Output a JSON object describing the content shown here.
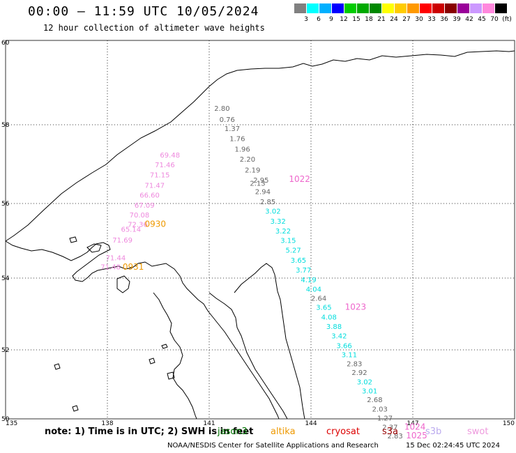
{
  "header": {
    "title": "00:00 – 11:59 UTC 10/05/2024",
    "subtitle": "12 hour collection of altimeter wave heights"
  },
  "legend": {
    "colors": [
      "#808080",
      "#00ffff",
      "#00b0ff",
      "#0000ff",
      "#00cc00",
      "#00aa00",
      "#008800",
      "#ffff00",
      "#ffcc00",
      "#ff9900",
      "#ff0000",
      "#cc0000",
      "#880000",
      "#990099",
      "#cc99ff",
      "#ff88dd",
      "#000000"
    ],
    "labels": [
      "3",
      "6",
      "9",
      "12",
      "15",
      "18",
      "21",
      "24",
      "27",
      "30",
      "33",
      "36",
      "39",
      "42",
      "45",
      "70",
      "(ft)"
    ]
  },
  "axes": {
    "lon_labels": [
      "135",
      "138",
      "141",
      "144",
      "147",
      "150"
    ],
    "lat_labels": [
      "50",
      "52",
      "54",
      "56",
      "58",
      "60"
    ]
  },
  "tracks": [
    {
      "color": "#666666",
      "values": [
        {
          "t": "2.80",
          "lat": 58.33,
          "lon": 141.15
        },
        {
          "t": "0.76",
          "lat": 58.07,
          "lon": 141.3
        },
        {
          "t": "1.37",
          "lat": 57.84,
          "lon": 141.45
        },
        {
          "t": "1.76",
          "lat": 57.58,
          "lon": 141.6
        },
        {
          "t": "1.96",
          "lat": 57.32,
          "lon": 141.75
        },
        {
          "t": "2.20",
          "lat": 57.06,
          "lon": 141.9
        },
        {
          "t": "2.19",
          "lat": 56.79,
          "lon": 142.05
        },
        {
          "t": "2.95",
          "lat": 56.53,
          "lon": 142.3
        },
        {
          "t": "2.13",
          "lat": 56.45,
          "lon": 142.2
        },
        {
          "t": "2.94",
          "lat": 56.24,
          "lon": 142.35
        },
        {
          "t": "2.85",
          "lat": 55.98,
          "lon": 142.5
        }
      ]
    },
    {
      "color": "#00dddd",
      "values": [
        {
          "t": "3.02",
          "lat": 55.73,
          "lon": 142.65
        },
        {
          "t": "3.32",
          "lat": 55.46,
          "lon": 142.8
        },
        {
          "t": "3.22",
          "lat": 55.2,
          "lon": 142.95
        },
        {
          "t": "3.15",
          "lat": 54.94,
          "lon": 143.1
        },
        {
          "t": "5.27",
          "lat": 54.68,
          "lon": 143.25
        },
        {
          "t": "3.65",
          "lat": 54.41,
          "lon": 143.4
        },
        {
          "t": "3.77",
          "lat": 54.15,
          "lon": 143.55
        },
        {
          "t": "4.19",
          "lat": 53.88,
          "lon": 143.7
        },
        {
          "t": "4.04",
          "lat": 53.62,
          "lon": 143.85
        }
      ]
    },
    {
      "color": "#666666",
      "values": [
        {
          "t": "2.64",
          "lat": 53.37,
          "lon": 144.0
        }
      ]
    },
    {
      "color": "#00dddd",
      "values": [
        {
          "t": "3.65",
          "lat": 53.12,
          "lon": 144.15
        },
        {
          "t": "4.08",
          "lat": 52.84,
          "lon": 144.3
        },
        {
          "t": "3.88",
          "lat": 52.58,
          "lon": 144.45
        },
        {
          "t": "3.42",
          "lat": 52.32,
          "lon": 144.6
        },
        {
          "t": "3.66",
          "lat": 52.05,
          "lon": 144.75
        },
        {
          "t": "3.11",
          "lat": 51.79,
          "lon": 144.9
        }
      ]
    },
    {
      "color": "#666666",
      "values": [
        {
          "t": "2.83",
          "lat": 51.53,
          "lon": 145.05
        },
        {
          "t": "2.92",
          "lat": 51.27,
          "lon": 145.2
        }
      ]
    },
    {
      "color": "#00dddd",
      "values": [
        {
          "t": "3.02",
          "lat": 51.0,
          "lon": 145.35
        },
        {
          "t": "3.01",
          "lat": 50.74,
          "lon": 145.5
        }
      ]
    },
    {
      "color": "#666666",
      "values": [
        {
          "t": "2.68",
          "lat": 50.48,
          "lon": 145.65
        },
        {
          "t": "2.03",
          "lat": 50.21,
          "lon": 145.8
        },
        {
          "t": "1.27",
          "lat": 49.95,
          "lon": 145.95
        },
        {
          "t": "2.37",
          "lat": 49.69,
          "lon": 146.1
        },
        {
          "t": "2.83",
          "lat": 49.43,
          "lon": 146.25
        }
      ]
    },
    {
      "color": "#ee88dd",
      "values": [
        {
          "t": "69.48",
          "lat": 57.17,
          "lon": 139.55
        },
        {
          "t": "71.46",
          "lat": 56.92,
          "lon": 139.4
        },
        {
          "t": "71.15",
          "lat": 56.66,
          "lon": 139.25
        },
        {
          "t": "71.47",
          "lat": 56.4,
          "lon": 139.1
        },
        {
          "t": "66.60",
          "lat": 56.15,
          "lon": 138.95
        },
        {
          "t": "67.09",
          "lat": 55.89,
          "lon": 138.8
        },
        {
          "t": "70.08",
          "lat": 55.63,
          "lon": 138.65
        },
        {
          "t": "72.36",
          "lat": 55.37,
          "lon": 138.6
        },
        {
          "t": "65.14",
          "lat": 55.24,
          "lon": 138.4
        },
        {
          "t": "71.69",
          "lat": 54.95,
          "lon": 138.15
        },
        {
          "t": "71.44",
          "lat": 54.48,
          "lon": 137.95
        },
        {
          "t": "71.48",
          "lat": 54.23,
          "lon": 137.8
        }
      ]
    }
  ],
  "time_labels": [
    {
      "t": "1022",
      "color": "#ee66cc",
      "lat": 56.55,
      "lon": 143.35
    },
    {
      "t": "0930",
      "color": "#ee9900",
      "lat": 55.37,
      "lon": 139.1
    },
    {
      "t": "0931",
      "color": "#ee9900",
      "lat": 54.22,
      "lon": 138.45
    },
    {
      "t": "1023",
      "color": "#ee66cc",
      "lat": 53.12,
      "lon": 145.0
    },
    {
      "t": "1024",
      "color": "#ee66cc",
      "lat": 49.69,
      "lon": 146.75
    },
    {
      "t": "1025",
      "color": "#ee66cc",
      "lat": 49.43,
      "lon": 146.8
    }
  ],
  "note": "note:  1) Time is in UTC; 2) SWH is in feet",
  "satellites": [
    {
      "name": "jason3",
      "color": "#007700"
    },
    {
      "name": "altika",
      "color": "#ee9900"
    },
    {
      "name": "cryosat",
      "color": "#dd0000"
    },
    {
      "name": "s3a",
      "color": "#990000"
    },
    {
      "name": "s3b",
      "color": "#bbaaee"
    },
    {
      "name": "swot",
      "color": "#ee99dd"
    }
  ],
  "footer": {
    "credit": "NOAA/NESDIS Center for Satellite Applications and Research",
    "timestamp": "15 Dec 02:24:45 UTC 2024"
  }
}
